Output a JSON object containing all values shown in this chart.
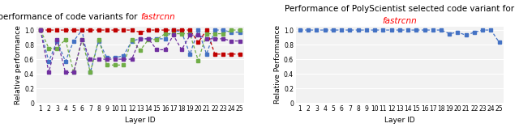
{
  "left_title_normal": "Relative performance of code variants for ",
  "left_title_red": "fastrcnn",
  "right_title_line1": "Performance of PolyScientist selected code variant for",
  "right_title_red": "fastrcnn",
  "layers": [
    1,
    2,
    3,
    4,
    5,
    6,
    7,
    8,
    9,
    10,
    11,
    12,
    13,
    14,
    15,
    16,
    17,
    18,
    19,
    20,
    21,
    22,
    23,
    24,
    25
  ],
  "v1": [
    1.0,
    0.57,
    0.85,
    0.57,
    0.85,
    1.0,
    0.42,
    0.85,
    0.62,
    0.62,
    0.65,
    0.85,
    0.88,
    0.88,
    0.88,
    0.88,
    1.0,
    0.97,
    0.67,
    1.0,
    0.67,
    1.0,
    1.0,
    0.97,
    0.97
  ],
  "v2": [
    1.0,
    1.0,
    1.0,
    1.0,
    1.0,
    1.0,
    1.0,
    1.0,
    1.0,
    1.0,
    1.0,
    1.0,
    0.97,
    1.0,
    1.0,
    1.0,
    1.0,
    1.0,
    1.0,
    0.83,
    1.0,
    0.67,
    0.67,
    0.67,
    0.67
  ],
  "v3": [
    1.0,
    0.75,
    0.75,
    0.87,
    0.42,
    0.87,
    0.42,
    0.87,
    0.52,
    0.52,
    0.52,
    0.87,
    0.72,
    0.87,
    0.87,
    0.95,
    0.95,
    0.95,
    0.95,
    0.58,
    0.95,
    0.95,
    0.95,
    1.0,
    1.0
  ],
  "v4": [
    1.0,
    0.42,
    0.87,
    0.42,
    0.42,
    0.87,
    0.6,
    0.6,
    0.6,
    0.6,
    0.6,
    0.6,
    0.88,
    0.88,
    0.73,
    0.73,
    0.93,
    0.73,
    0.93,
    0.93,
    0.88,
    0.88,
    0.88,
    0.85,
    0.85
  ],
  "poly": [
    1.0,
    1.0,
    1.0,
    1.0,
    1.0,
    1.0,
    1.0,
    1.0,
    1.0,
    1.0,
    1.0,
    1.0,
    1.0,
    1.0,
    1.0,
    1.0,
    1.0,
    1.0,
    0.95,
    0.97,
    0.93,
    0.97,
    1.0,
    1.0,
    0.83
  ],
  "v1_color": "#4472c4",
  "v2_color": "#c00000",
  "v3_color": "#70ad47",
  "v4_color": "#7030a0",
  "poly_color": "#4472c4",
  "ylabel_left": "Relative performance",
  "ylabel_right": "Relative Performance",
  "xlabel": "Layer ID",
  "ylim": [
    0,
    1.05
  ],
  "yticks": [
    0,
    0.2,
    0.4,
    0.6,
    0.8,
    1.0
  ],
  "bg_color": "#f2f2f2",
  "title_fontsize": 7.5,
  "axis_fontsize": 6.5,
  "tick_fontsize": 5.5,
  "legend_fontsize": 6.5
}
